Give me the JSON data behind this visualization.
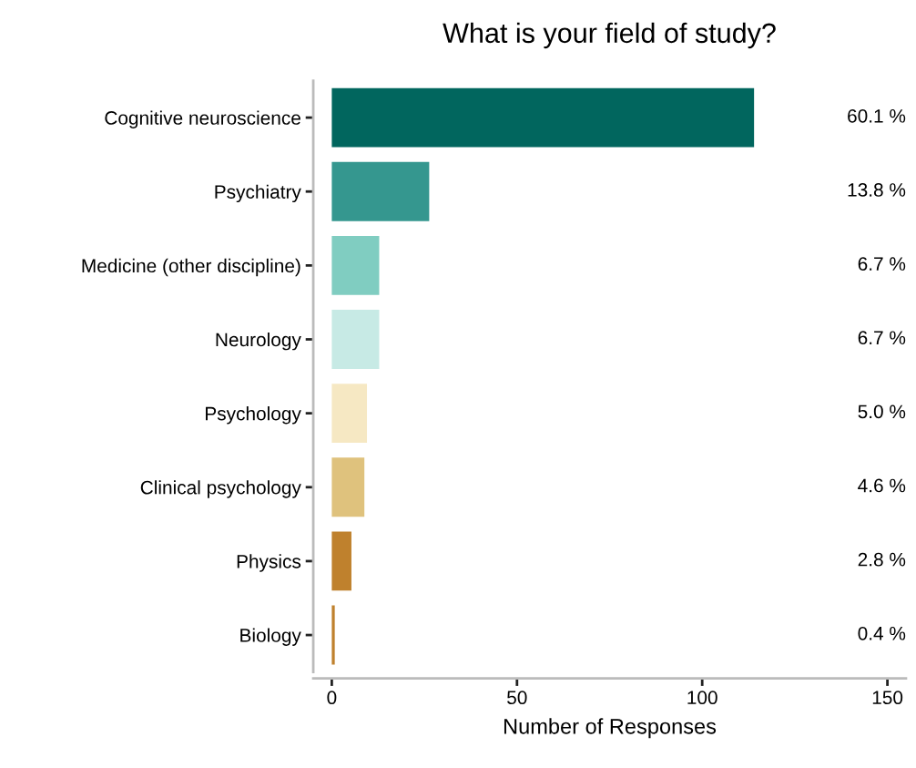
{
  "chart_data": {
    "type": "bar",
    "orientation": "horizontal",
    "title": "What is your field of study?",
    "xlabel": "Number of Responses",
    "categories": [
      "Cognitive neuroscience",
      "Psychiatry",
      "Medicine (other discipline)",
      "Neurology",
      "Psychology",
      "Clinical psychology",
      "Physics",
      "Biology"
    ],
    "values": [
      114,
      26.3,
      12.8,
      12.8,
      9.5,
      8.8,
      5.3,
      0.8
    ],
    "colors": [
      "#01665e",
      "#35978f",
      "#80cdc1",
      "#c7eae5",
      "#f6e8c3",
      "#dfc27d",
      "#bf812d",
      "#bf812d"
    ],
    "annotations": [
      "60.1 %",
      "13.8 %",
      "6.7 %",
      "6.7 %",
      "5.0 %",
      "4.6 %",
      "2.8 %",
      "0.4 %"
    ],
    "xlim": [
      -5,
      155
    ],
    "xticks": [
      0,
      50,
      100,
      150
    ],
    "grid": false,
    "legend": false
  }
}
